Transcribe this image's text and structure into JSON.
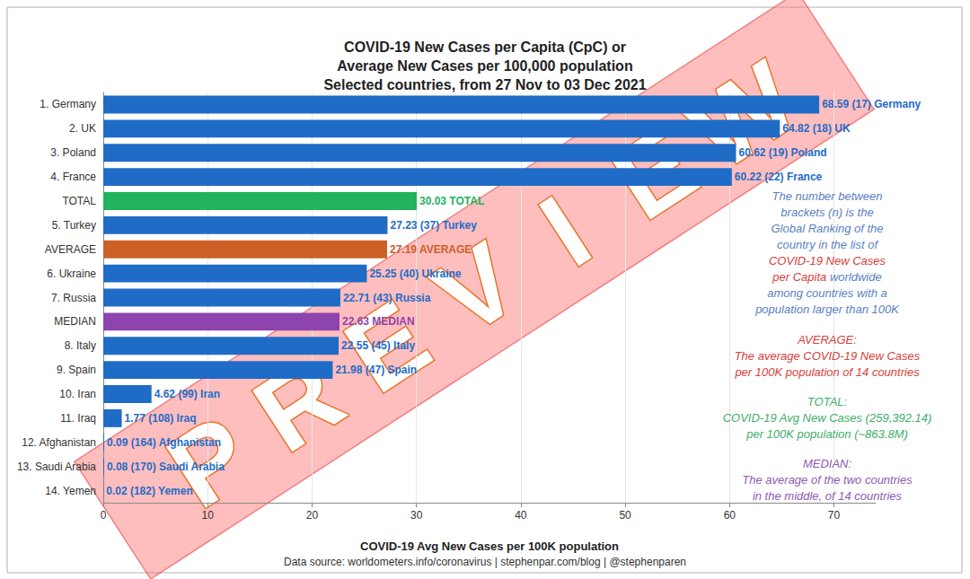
{
  "chart_data": {
    "type": "bar",
    "orientation": "horizontal",
    "title": [
      "COVID-19 New Cases per Capita (CpC) or",
      "Average New Cases per 100,000 population",
      "Selected countries, from 27 Nov to 03 Dec 2021"
    ],
    "x_label": "COVID-19 Avg New Cases per 100K population",
    "source": "Data source: worldometers.info/coronavirus | stephenpar.com/blog | @stephenparen",
    "categories": [
      "1. Germany",
      "2. UK",
      "3. Poland",
      "4. France",
      "TOTAL",
      "5. Turkey",
      "AVERAGE",
      "6. Ukraine",
      "7. Russia",
      "MEDIAN",
      "8. Italy",
      "9. Spain",
      "10. Iran",
      "11. Iraq",
      "12. Afghanistan",
      "13. Saudi Arabia",
      "14. Yemen"
    ],
    "values": [
      68.59,
      64.82,
      60.62,
      60.22,
      30.03,
      27.23,
      27.19,
      25.25,
      22.71,
      22.63,
      22.55,
      21.98,
      4.62,
      1.77,
      0.09,
      0.08,
      0.02
    ],
    "value_labels": [
      "68.59 (17) Germany",
      "64.82 (18) UK",
      "60.62 (19) Poland",
      "60.22 (22) France",
      "30.03 TOTAL",
      "27.23 (37) Turkey",
      "27.19 AVERAGE",
      "25.25 (40) Ukraine",
      "22.71 (43) Russia",
      "22.63 MEDIAN",
      "22.55 (45) Italy",
      "21.98 (47) Spain",
      "4.62 (99) Iran",
      "1.77 (108) Iraq",
      "0.09 (164) Afghanistan",
      "0.08 (170) Saudi Arabia",
      "0.02 (182) Yemen"
    ],
    "colors": [
      "#1f6cc7",
      "#1f6cc7",
      "#1f6cc7",
      "#1f6cc7",
      "#21b35e",
      "#1f6cc7",
      "#cc6026",
      "#1f6cc7",
      "#1f6cc7",
      "#8e44ad",
      "#1f6cc7",
      "#1f6cc7",
      "#1f6cc7",
      "#1f6cc7",
      "#1f6cc7",
      "#1f6cc7",
      "#1f6cc7"
    ],
    "xlim": [
      0,
      74
    ],
    "xticks": [
      0,
      10,
      20,
      30,
      40,
      50,
      60,
      70
    ],
    "grid": true,
    "data_labels": true,
    "annotations": [
      {
        "text": [
          "The number between",
          "brackets (n) is the",
          "Global Ranking of the",
          "country in the list of",
          [
            "COVID-19 New Cases"
          ],
          [
            "per Capita",
            " worldwide"
          ],
          "among countries with a",
          "population larger than 100K"
        ]
      },
      {
        "text": [
          "AVERAGE:",
          "The average COVID-19 New Cases",
          "per 100K population of 14 countries"
        ]
      },
      {
        "text": [
          "TOTAL:",
          "COVID-19 Avg New Cases (259,392.14)",
          "per 100K population (~863.8M)"
        ]
      },
      {
        "text": [
          "MEDIAN:",
          "The average of the two countries",
          "in the middle, of 14 countries"
        ]
      }
    ],
    "watermark": "PREVIEW"
  }
}
